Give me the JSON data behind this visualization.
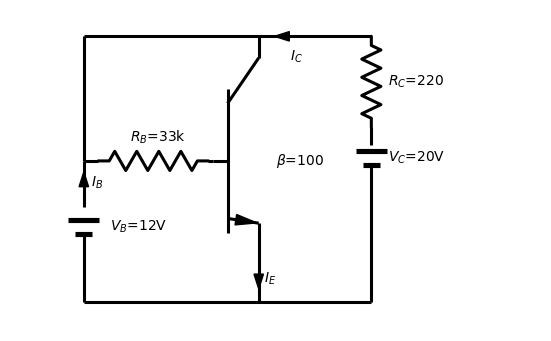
{
  "bg_color": "#ffffff",
  "line_color": "#000000",
  "line_width": 2.2,
  "fig_width": 5.51,
  "fig_height": 3.41,
  "dpi": 100,
  "xlim": [
    0,
    11
  ],
  "ylim": [
    0,
    7
  ],
  "RB_label": "R_B=33k",
  "RC_label": "R_C=220",
  "VB_label": "V_B=12V",
  "VC_label": "V_C=20V",
  "beta_label": "\\u03b2=100",
  "IB_label": "I_B",
  "IC_label": "I_C",
  "IE_label": "I_E",
  "font_size": 10,
  "sub_font_size": 9
}
